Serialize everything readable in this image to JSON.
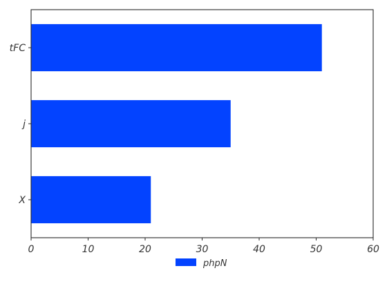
{
  "chart_data": {
    "type": "bar",
    "orientation": "horizontal",
    "categories": [
      "X",
      "j",
      "tFC"
    ],
    "series": [
      {
        "name": "phpN",
        "values": [
          21,
          35,
          51
        ],
        "color": "#0343FF"
      }
    ],
    "xlim": [
      0,
      60
    ],
    "xticks": [
      0,
      10,
      20,
      30,
      40,
      50,
      60
    ],
    "grid": false,
    "legend_position": "bottom-center"
  }
}
